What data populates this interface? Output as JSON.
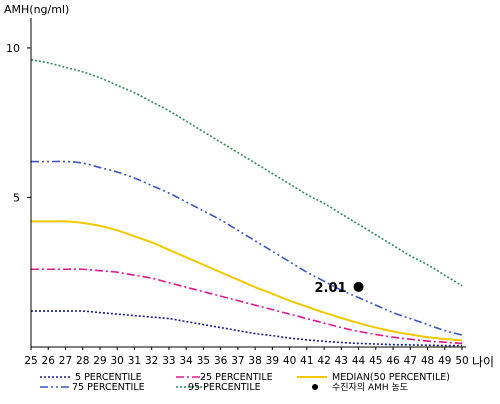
{
  "chart_data": {
    "type": "line",
    "ylabel": "AMH(ng/ml)",
    "xlabel": "나이",
    "ylim": [
      0,
      11
    ],
    "xlim": [
      25,
      50
    ],
    "yticks": [
      5,
      10
    ],
    "x": [
      25,
      26,
      27,
      28,
      29,
      30,
      31,
      32,
      33,
      34,
      35,
      36,
      37,
      38,
      39,
      40,
      41,
      42,
      43,
      44,
      45,
      46,
      47,
      48,
      49,
      50
    ],
    "series": [
      {
        "name": "5 PERCENTILE",
        "color": "#1a1a8c",
        "dash": "2,2",
        "values": [
          1.2,
          1.2,
          1.2,
          1.2,
          1.15,
          1.1,
          1.05,
          1.0,
          0.95,
          0.85,
          0.75,
          0.65,
          0.55,
          0.45,
          0.38,
          0.3,
          0.24,
          0.19,
          0.15,
          0.12,
          0.1,
          0.08,
          0.07,
          0.06,
          0.05,
          0.05
        ]
      },
      {
        "name": "25 PERCENTILE",
        "color": "#e0198c",
        "dash": "8,3,2,3",
        "values": [
          2.6,
          2.6,
          2.6,
          2.6,
          2.55,
          2.5,
          2.4,
          2.3,
          2.15,
          2.0,
          1.85,
          1.7,
          1.55,
          1.4,
          1.25,
          1.1,
          0.95,
          0.8,
          0.65,
          0.52,
          0.42,
          0.33,
          0.26,
          0.2,
          0.16,
          0.12
        ]
      },
      {
        "name": "MEDIAN(50 PERCENTILE)",
        "color": "#f2c800",
        "dash": "",
        "values": [
          4.2,
          4.2,
          4.2,
          4.15,
          4.05,
          3.9,
          3.7,
          3.5,
          3.25,
          3.0,
          2.75,
          2.5,
          2.25,
          2.0,
          1.78,
          1.55,
          1.35,
          1.15,
          0.97,
          0.8,
          0.65,
          0.52,
          0.42,
          0.33,
          0.27,
          0.22
        ]
      },
      {
        "name": "75 PERCENTILE",
        "color": "#3a56c8",
        "dash": "8,3,2,3,2,3",
        "values": [
          6.2,
          6.2,
          6.2,
          6.15,
          6.0,
          5.85,
          5.65,
          5.4,
          5.15,
          4.85,
          4.55,
          4.25,
          3.9,
          3.55,
          3.2,
          2.85,
          2.5,
          2.2,
          1.9,
          1.65,
          1.4,
          1.15,
          0.95,
          0.75,
          0.55,
          0.4
        ]
      },
      {
        "name": "95 PERCENTILE",
        "color": "#2e8b57",
        "dash": "2,2",
        "values": [
          9.6,
          9.5,
          9.35,
          9.2,
          9.0,
          8.75,
          8.5,
          8.2,
          7.9,
          7.55,
          7.2,
          6.85,
          6.5,
          6.15,
          5.8,
          5.45,
          5.1,
          4.8,
          4.45,
          4.1,
          3.75,
          3.4,
          3.05,
          2.75,
          2.4,
          2.05
        ]
      }
    ],
    "marker": {
      "name": "수진자의 AMH 농도",
      "x": 44,
      "y": 2.01,
      "label": "2.01",
      "color": "#000000"
    }
  }
}
